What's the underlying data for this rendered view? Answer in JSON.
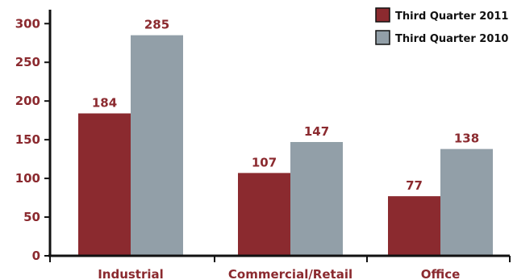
{
  "chart_data": {
    "type": "bar",
    "title": "",
    "xlabel": "",
    "ylabel": "",
    "categories": [
      "Industrial",
      "Commercial/Retail",
      "Office"
    ],
    "series": [
      {
        "name": "Third Quarter 2011",
        "values": [
          184,
          107,
          77
        ],
        "data_labels": [
          "184",
          "107",
          "77"
        ],
        "color": "#8b2a2f"
      },
      {
        "name": "Third Quarter 2010",
        "values": [
          285,
          147,
          138
        ],
        "data_labels": [
          "285",
          "147",
          "138"
        ],
        "color": "#929fa8"
      }
    ],
    "y_ticks": [
      0,
      50,
      100,
      150,
      200,
      250,
      300
    ],
    "y_tick_labels": [
      "0",
      "50",
      "100",
      "150",
      "200",
      "250",
      "300"
    ],
    "ylim": [
      0,
      318
    ],
    "grid": false,
    "legend_position": "top-right",
    "axis_color": "#111111",
    "label_color": "#8b2a2f"
  }
}
